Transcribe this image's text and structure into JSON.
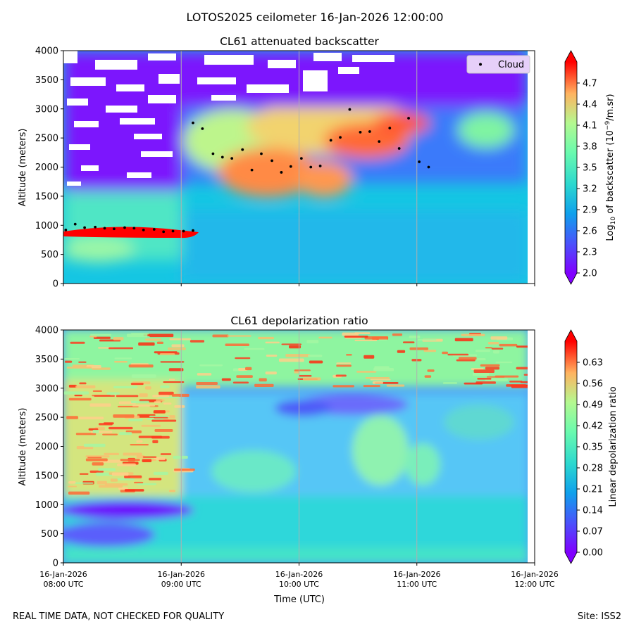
{
  "suptitle": "LOTOS2025 ceilometer 16-Jan-2026 12:00:00",
  "footer_left": "REAL TIME DATA, NOT CHECKED FOR QUALITY",
  "footer_right": "Site: ISS2",
  "chart_data": [
    {
      "type": "heatmap",
      "title": "CL61 attenuated backscatter",
      "xlabel": "",
      "ylabel": "Altitude (meters)",
      "ylim": [
        0,
        4000
      ],
      "yticks": [
        "0",
        "500",
        "1000",
        "1500",
        "2000",
        "2500",
        "3000",
        "3500",
        "4000"
      ],
      "x_range": [
        "16-Jan-2026 08:00 UTC",
        "16-Jan-2026 12:00 UTC"
      ],
      "grid": "vertical",
      "colormap": "rainbow",
      "colorbar": {
        "label": "Log10 of backscatter (10^-9/m.sr)",
        "range": [
          2.0,
          5.0
        ],
        "ticks": [
          "2.0",
          "2.3",
          "2.6",
          "2.9",
          "3.2",
          "3.5",
          "3.8",
          "4.1",
          "4.4",
          "4.7"
        ]
      },
      "legend": {
        "label": "Cloud",
        "placement": "upper-right"
      },
      "cloud_points": {
        "name": "Cloud",
        "x_hours": [
          8.02,
          8.1,
          8.18,
          8.27,
          8.35,
          8.43,
          8.52,
          8.6,
          8.68,
          8.77,
          8.85,
          8.93,
          9.02,
          9.1,
          9.1,
          9.18,
          9.27,
          9.35,
          9.43,
          9.52,
          9.6,
          9.68,
          9.77,
          9.85,
          9.93,
          10.02,
          10.1,
          10.18,
          10.27,
          10.35,
          10.43,
          10.52,
          10.6,
          10.68,
          10.77,
          10.85,
          10.93,
          11.02,
          11.1
        ],
        "altitude_m": [
          920,
          1020,
          960,
          970,
          950,
          940,
          960,
          950,
          920,
          930,
          890,
          900,
          900,
          910,
          2760,
          2660,
          2230,
          2170,
          2150,
          2300,
          1950,
          2230,
          2110,
          1910,
          2010,
          2150,
          2000,
          2020,
          2460,
          2510,
          2990,
          2600,
          2610,
          2440,
          2670,
          2320,
          2840,
          2090,
          2000
        ]
      },
      "notes": "Dense low cloud layer near 800-1000 m (log10 > 4.7) from 08:00 to 09:10 UTC; broad elevated layer 1700-3000 m from 09:00 to 12:00 UTC peaking ~4.1-4.4; white gaps above 3000 m before 10:30 UTC."
    },
    {
      "type": "heatmap",
      "title": "CL61 depolarization ratio",
      "xlabel": "Time (UTC)",
      "ylabel": "Altitude (meters)",
      "ylim": [
        0,
        4000
      ],
      "yticks": [
        "0",
        "500",
        "1000",
        "1500",
        "2000",
        "2500",
        "3000",
        "3500",
        "4000"
      ],
      "xticks": [
        [
          "16-Jan-2026",
          "08:00 UTC"
        ],
        [
          "16-Jan-2026",
          "09:00 UTC"
        ],
        [
          "16-Jan-2026",
          "10:00 UTC"
        ],
        [
          "16-Jan-2026",
          "11:00 UTC"
        ],
        [
          "16-Jan-2026",
          "12:00 UTC"
        ]
      ],
      "grid": "vertical",
      "colormap": "rainbow",
      "colorbar": {
        "label": "Linear depolarization ratio",
        "range": [
          0.0,
          0.7
        ],
        "ticks": [
          "0.00",
          "0.07",
          "0.14",
          "0.21",
          "0.28",
          "0.35",
          "0.42",
          "0.49",
          "0.56",
          "0.63"
        ]
      },
      "notes": "Noisy high values (0.4-0.7) above 3000 m and below 2800 m before 09:00 UTC; low depolarization (~0.05-0.1) in the 700-1000 m layer; 0.2-0.35 within the elevated cloud layer."
    }
  ]
}
